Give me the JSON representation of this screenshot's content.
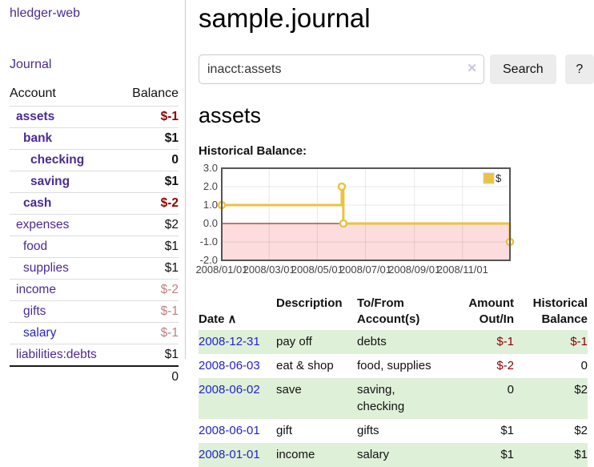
{
  "sidebar": {
    "brand": "hledger-web",
    "nav": {
      "journal": "Journal"
    },
    "accounts_table": {
      "headers": {
        "account": "Account",
        "balance": "Balance"
      },
      "accounts": [
        {
          "name": "assets",
          "depth": 1,
          "in_account": true,
          "balance": "$-1"
        },
        {
          "name": "bank",
          "depth": 2,
          "in_account": true,
          "balance": "$1"
        },
        {
          "name": "checking",
          "depth": 3,
          "in_account": true,
          "balance": "0"
        },
        {
          "name": "saving",
          "depth": 3,
          "in_account": true,
          "balance": "$1"
        },
        {
          "name": "cash",
          "depth": 2,
          "in_account": true,
          "balance": "$-2"
        },
        {
          "name": "expenses",
          "depth": 1,
          "in_account": false,
          "balance": "$2"
        },
        {
          "name": "food",
          "depth": 2,
          "in_account": false,
          "balance": "$1"
        },
        {
          "name": "supplies",
          "depth": 2,
          "in_account": false,
          "balance": "$1"
        },
        {
          "name": "income",
          "depth": 1,
          "in_account": false,
          "balance": "$-2"
        },
        {
          "name": "gifts",
          "depth": 2,
          "in_account": false,
          "balance": "$-1"
        },
        {
          "name": "salary",
          "depth": 2,
          "in_account": false,
          "balance": "$-1",
          "link_state": "unvisited"
        },
        {
          "name": "liabilities:debts",
          "depth": 1,
          "in_account": false,
          "balance": "$1"
        }
      ],
      "total": "0"
    }
  },
  "header": {
    "title": "sample.journal"
  },
  "search": {
    "value": "inacct:assets",
    "clear_icon": "✕",
    "button_label": "Search",
    "help_label": "?"
  },
  "main": {
    "account_heading": "assets",
    "chart_label": "Historical Balance:"
  },
  "chart_data": {
    "type": "line",
    "title": "Historical Balance",
    "step": true,
    "series": [
      {
        "name": "$",
        "color": "#edc240",
        "points": [
          [
            "2008-01-01",
            1
          ],
          [
            "2008-06-01",
            2
          ],
          [
            "2008-06-03",
            0
          ],
          [
            "2008-12-31",
            -1
          ]
        ]
      }
    ],
    "x_range": [
      "2008-01-01",
      "2008-12-31"
    ],
    "ylim": [
      -2,
      3
    ],
    "y_ticks": [
      3.0,
      2.0,
      1.0,
      0.0,
      -1.0,
      -2.0
    ],
    "x_ticks": [
      "2008/01/01",
      "2008/03/01",
      "2008/05/01",
      "2008/07/01",
      "2008/09/01",
      "2008/11/01"
    ],
    "legend": {
      "label": "$",
      "position": "top-right"
    },
    "grid": true,
    "negative_region_color": "#fcdcdc",
    "zero_line_color": "#800000",
    "border_color": "#555555"
  },
  "transactions": {
    "headers": {
      "date": "Date",
      "description": "Description",
      "tofrom": "To/From\nAccount(s)",
      "amount": "Amount\nOut/In",
      "balance": "Historical\nBalance"
    },
    "rows": [
      {
        "date": "2008-12-31",
        "description": "pay off",
        "accounts": "debts",
        "amount": "$-1",
        "balance": "$-1"
      },
      {
        "date": "2008-06-03",
        "description": "eat & shop",
        "accounts": "food, supplies",
        "amount": "$-2",
        "balance": "0"
      },
      {
        "date": "2008-06-02",
        "description": "save",
        "accounts": "saving, checking",
        "amount": "0",
        "balance": "$2"
      },
      {
        "date": "2008-06-01",
        "description": "gift",
        "accounts": "gifts",
        "amount": "$1",
        "balance": "$2"
      },
      {
        "date": "2008-01-01",
        "description": "income",
        "accounts": "salary",
        "amount": "$1",
        "balance": "$1"
      }
    ]
  },
  "colors": {
    "accent_purple": "#4b2b93",
    "negative": "#8b0000",
    "negative_muted": "#c27f7f",
    "row_highlight_green": "#dff0d8",
    "link_blue": "#2323cc",
    "chart_line": "#edc240"
  }
}
